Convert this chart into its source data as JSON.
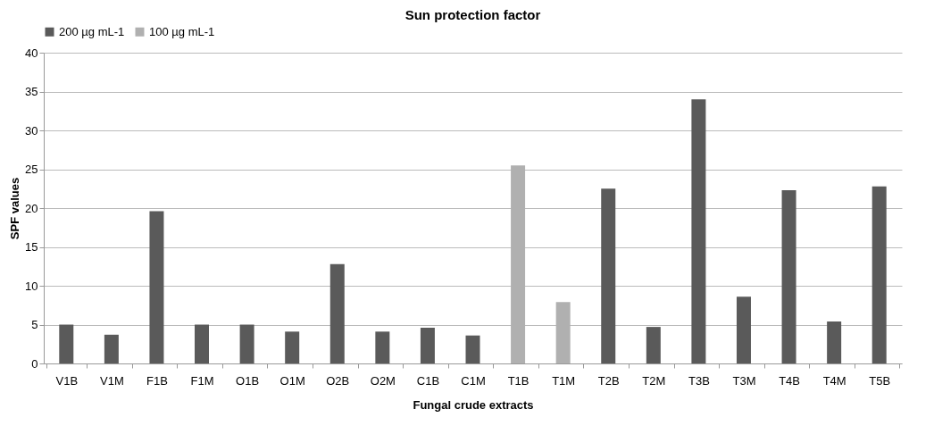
{
  "chart_data": {
    "type": "bar",
    "title": "Sun protection factor",
    "xlabel": "Fungal crude extracts",
    "ylabel": "SPF values",
    "categories": [
      "V1B",
      "V1M",
      "F1B",
      "F1M",
      "O1B",
      "O1M",
      "O2B",
      "O2M",
      "C1B",
      "C1M",
      "T1B",
      "T1M",
      "T2B",
      "T2M",
      "T3B",
      "T3M",
      "T4B",
      "T4M",
      "T5B"
    ],
    "series": [
      {
        "name": "200 µg mL-1",
        "color": "#5a5a5a",
        "values": [
          5.0,
          3.7,
          19.6,
          5.0,
          5.0,
          4.1,
          12.8,
          4.1,
          4.6,
          3.6,
          null,
          null,
          22.5,
          4.7,
          34.0,
          8.6,
          22.3,
          5.4,
          22.8
        ]
      },
      {
        "name": "100 µg mL-1",
        "color": "#b0b0b0",
        "values": [
          null,
          null,
          null,
          null,
          null,
          null,
          null,
          null,
          null,
          null,
          25.5,
          7.9,
          null,
          null,
          null,
          null,
          null,
          null,
          null
        ]
      }
    ],
    "ylim": [
      0,
      40
    ],
    "yticks": [
      0,
      5,
      10,
      15,
      20,
      25,
      30,
      35,
      40
    ],
    "grid": "y",
    "legend": "top"
  }
}
